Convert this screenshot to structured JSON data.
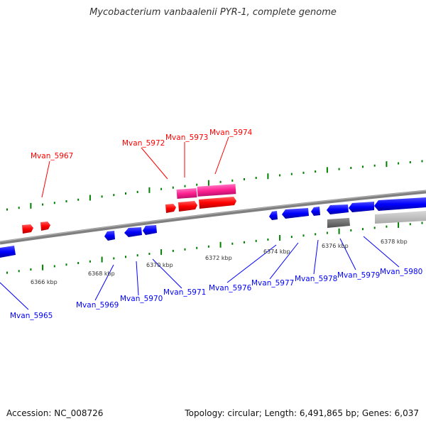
{
  "title": "Mycobacterium vanbaalenii PYR-1, complete genome",
  "footer": {
    "accession": "Accession: NC_008726",
    "topology": "Topology: circular; Length: 6,491,865 bp; Genes: 6,037"
  },
  "colors": {
    "forward": "#ff0000",
    "forward_alt": "#ff1493",
    "reverse": "#0000ff",
    "backbone": "#808080",
    "ticks": "#008000"
  },
  "scale_labels": [
    "6366 kbp",
    "6368 kbp",
    "6370 kbp",
    "6372 kbp",
    "6374 kbp",
    "6376 kbp",
    "6378 kbp"
  ],
  "forward_genes": [
    "Mvan_5967",
    "Mvan_5972",
    "Mvan_5973",
    "Mvan_5974"
  ],
  "reverse_genes": [
    "Mvan_5965",
    "Mvan_5969",
    "Mvan_5970",
    "Mvan_5971",
    "Mvan_5976",
    "Mvan_5977",
    "Mvan_5978",
    "Mvan_5979",
    "Mvan_5980"
  ]
}
